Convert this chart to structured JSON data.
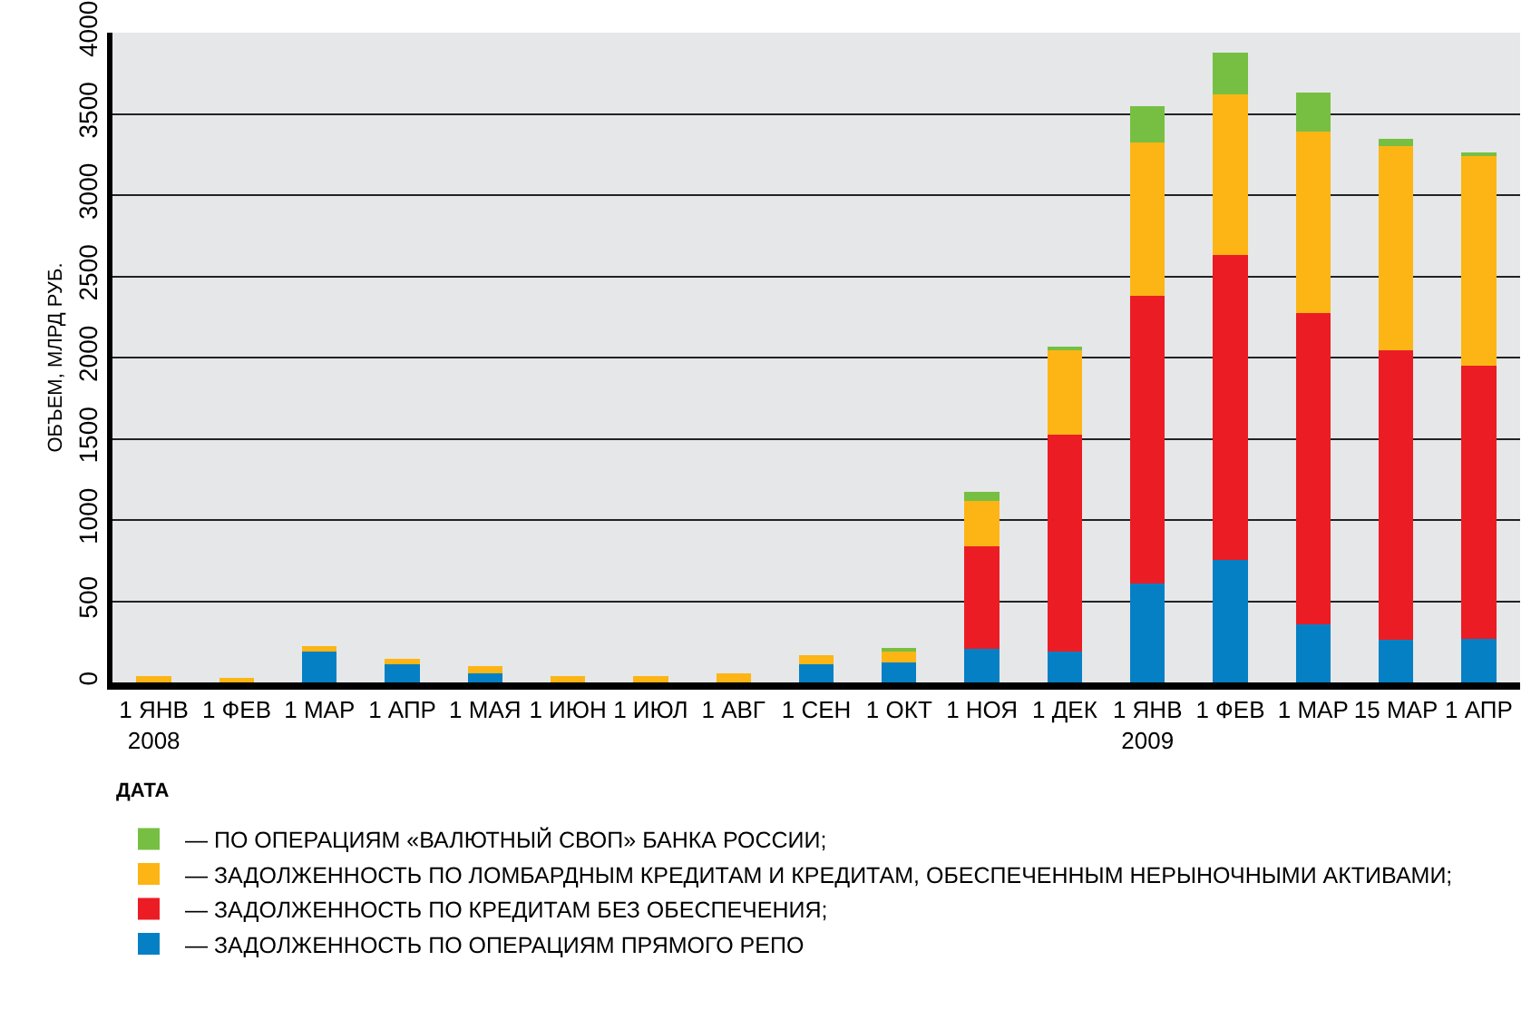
{
  "chart_data": {
    "type": "bar",
    "stacked": true,
    "xlabel": "ДАТА",
    "ylabel": "ОБЪЕМ, МЛРД РУБ.",
    "categories": [
      "1 ЯНВ\n2008",
      "1 ФЕВ",
      "1 МАР",
      "1 АПР",
      "1 МАЯ",
      "1 ИЮН",
      "1 ИЮЛ",
      "1 АВГ",
      "1 СЕН",
      "1 ОКТ",
      "1 НОЯ",
      "1 ДЕК",
      "1 ЯНВ\n2009",
      "1 ФЕВ",
      "1 МАР",
      "15 МАР",
      "1 АПР"
    ],
    "series": [
      {
        "name": "— ЗАДОЛЖЕННОСТЬ ПО ОПЕРАЦИЯМ ПРЯМОГО РЕПО",
        "color": "#0580c4",
        "values": [
          0,
          0,
          190,
          110,
          55,
          0,
          0,
          0,
          110,
          125,
          205,
          190,
          610,
          755,
          355,
          265,
          270
        ]
      },
      {
        "name": "— ЗАДОЛЖЕННОСТЬ ПО КРЕДИТАМ БЕЗ ОБЕСПЕЧЕНИЯ;",
        "color": "#ec1c24",
        "values": [
          0,
          0,
          0,
          0,
          0,
          0,
          0,
          0,
          0,
          0,
          635,
          1335,
          1770,
          1875,
          1920,
          1780,
          1680
        ]
      },
      {
        "name": "— ЗАДОЛЖЕННОСТЬ ПО ЛОМБАРДНЫМ КРЕДИТАМ И КРЕДИТАМ, ОБЕСПЕЧЕННЫМ НЕРЫНОЧНЫМИ АКТИВАМИ;",
        "color": "#fcb514",
        "values": [
          40,
          30,
          35,
          35,
          45,
          40,
          40,
          55,
          60,
          70,
          275,
          530,
          945,
          990,
          1115,
          1255,
          1300
        ]
      },
      {
        "name": "— ПО ОПЕРАЦИЯМ «ВАЛЮТНЫЙ СВОП» БАНКА РОССИИ;",
        "color": "#76bf43",
        "values": [
          0,
          0,
          0,
          0,
          0,
          0,
          0,
          0,
          0,
          10,
          60,
          10,
          220,
          255,
          240,
          45,
          10
        ]
      }
    ],
    "ylim": [
      0,
      4000
    ],
    "yticks": [
      0,
      500,
      1000,
      1500,
      2000,
      2500,
      3000,
      3500,
      4000
    ],
    "grid": "y",
    "legend": "bottom"
  }
}
